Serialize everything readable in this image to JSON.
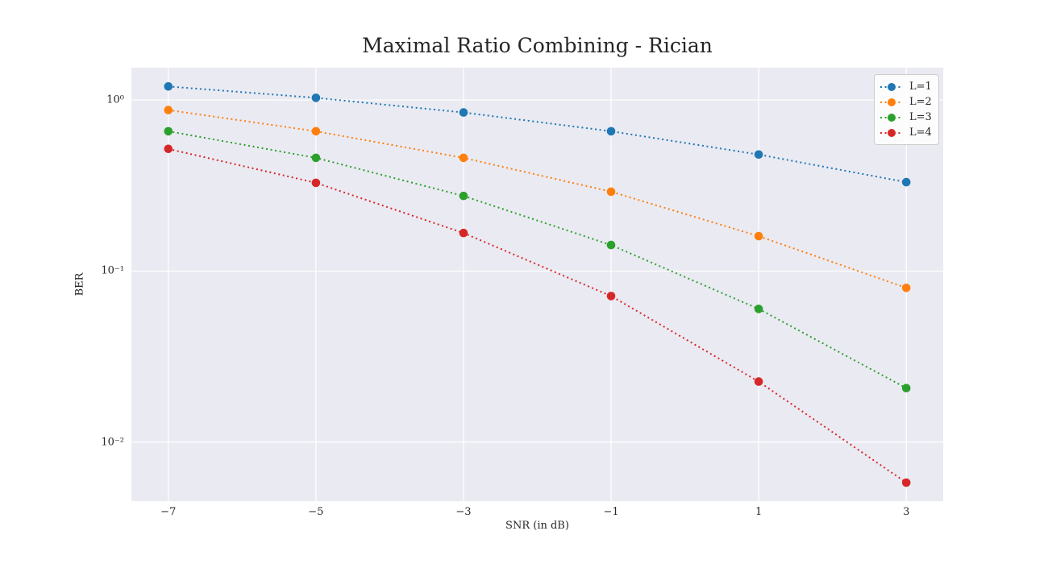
{
  "chart_data": {
    "type": "line",
    "title": "Maximal Ratio Combining - Rician",
    "xlabel": "SNR (in dB)",
    "ylabel": "BER",
    "x": [
      -7,
      -5,
      -3,
      -1,
      1,
      3
    ],
    "series": [
      {
        "name": "L=1",
        "color": "#1f77b4",
        "values": [
          1.2,
          1.03,
          0.845,
          0.657,
          0.48,
          0.331
        ]
      },
      {
        "name": "L=2",
        "color": "#ff7f0e",
        "values": [
          0.873,
          0.657,
          0.459,
          0.291,
          0.16,
          0.0798
        ]
      },
      {
        "name": "L=3",
        "color": "#2ca02c",
        "values": [
          0.657,
          0.459,
          0.275,
          0.142,
          0.0601,
          0.0207
        ]
      },
      {
        "name": "L=4",
        "color": "#d62728",
        "values": [
          0.518,
          0.328,
          0.167,
          0.0715,
          0.0226,
          0.0058
        ]
      }
    ],
    "xticks": [
      -7,
      -5,
      -3,
      -1,
      1,
      3
    ],
    "xtick_labels": [
      "−7",
      "−5",
      "−3",
      "−1",
      "1",
      "3"
    ],
    "ytick_values": [
      1,
      0.1,
      0.01
    ],
    "ytick_labels": [
      "10⁰",
      "10⁻¹",
      "10⁻²"
    ],
    "xlim": [
      -7.5,
      3.5
    ],
    "ylim": [
      0.00452,
      1.545
    ],
    "yscale": "log",
    "grid": true,
    "legend_position": "upper right",
    "line_style": "dotted",
    "marker": "circle",
    "colors": {
      "plot_background": "#eaeaf2",
      "gridline": "#ffffff",
      "text": "#262626",
      "legend_border": "#cccccc"
    }
  }
}
